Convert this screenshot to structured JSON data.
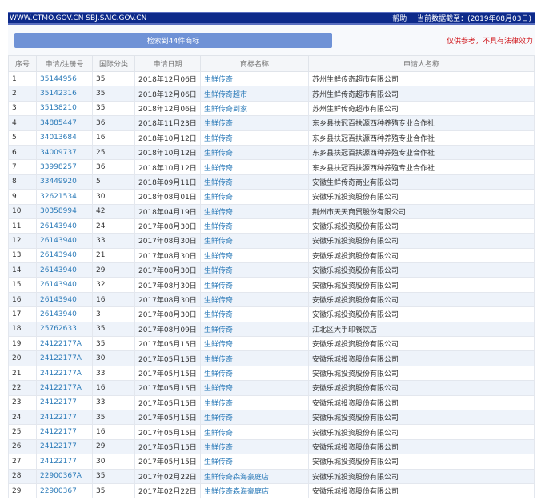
{
  "header": {
    "site": "WWW.CTMO.GOV.CN SBJ.SAIC.GOV.CN",
    "help": "帮助",
    "data_date": "当前数据截至：(2019年08月03日)"
  },
  "result_button": "检索到44件商标",
  "disclaimer": "仅供参考，不具有法律效力",
  "columns": [
    "序号",
    "申请/注册号",
    "国际分类",
    "申请日期",
    "商标名称",
    "申请人名称"
  ],
  "rows": [
    [
      "1",
      "35144956",
      "35",
      "2018年12月06日",
      "生鲜传奇",
      "苏州生鲜传奇超市有限公司"
    ],
    [
      "2",
      "35142316",
      "35",
      "2018年12月06日",
      "生鲜传奇超市",
      "苏州生鲜传奇超市有限公司"
    ],
    [
      "3",
      "35138210",
      "35",
      "2018年12月06日",
      "生鲜传奇到家",
      "苏州生鲜传奇超市有限公司"
    ],
    [
      "4",
      "34885447",
      "36",
      "2018年11月23日",
      "生鲜传奇",
      "东乡县扶冠百扶源西种养殖专业合作社"
    ],
    [
      "5",
      "34013684",
      "16",
      "2018年10月12日",
      "生鲜传奇",
      "东乡县扶冠百扶源西种养殖专业合作社"
    ],
    [
      "6",
      "34009737",
      "25",
      "2018年10月12日",
      "生鲜传奇",
      "东乡县扶冠百扶源西种养殖专业合作社"
    ],
    [
      "7",
      "33998257",
      "36",
      "2018年10月12日",
      "生鲜传奇",
      "东乡县扶冠百扶源西种养殖专业合作社"
    ],
    [
      "8",
      "33449920",
      "5",
      "2018年09月11日",
      "生鲜传奇",
      "安徽生鲜传奇商业有限公司"
    ],
    [
      "9",
      "32621534",
      "30",
      "2018年08月01日",
      "生鲜传奇",
      "安徽乐城投资股份有限公司"
    ],
    [
      "10",
      "30358994",
      "42",
      "2018年04月19日",
      "生鲜传奇",
      "荆州市天天商贸股份有限公司"
    ],
    [
      "11",
      "26143940",
      "24",
      "2017年08月30日",
      "生鲜传奇",
      "安徽乐城投资股份有限公司"
    ],
    [
      "12",
      "26143940",
      "33",
      "2017年08月30日",
      "生鲜传奇",
      "安徽乐城投资股份有限公司"
    ],
    [
      "13",
      "26143940",
      "21",
      "2017年08月30日",
      "生鲜传奇",
      "安徽乐城投资股份有限公司"
    ],
    [
      "14",
      "26143940",
      "29",
      "2017年08月30日",
      "生鲜传奇",
      "安徽乐城投资股份有限公司"
    ],
    [
      "15",
      "26143940",
      "32",
      "2017年08月30日",
      "生鲜传奇",
      "安徽乐城投资股份有限公司"
    ],
    [
      "16",
      "26143940",
      "16",
      "2017年08月30日",
      "生鲜传奇",
      "安徽乐城投资股份有限公司"
    ],
    [
      "17",
      "26143940",
      "3",
      "2017年08月30日",
      "生鲜传奇",
      "安徽乐城投资股份有限公司"
    ],
    [
      "18",
      "25762633",
      "35",
      "2017年08月09日",
      "生鲜传奇",
      "江北区大手印餐饮店"
    ],
    [
      "19",
      "24122177A",
      "35",
      "2017年05月15日",
      "生鲜传奇",
      "安徽乐城投资股份有限公司"
    ],
    [
      "20",
      "24122177A",
      "30",
      "2017年05月15日",
      "生鲜传奇",
      "安徽乐城投资股份有限公司"
    ],
    [
      "21",
      "24122177A",
      "33",
      "2017年05月15日",
      "生鲜传奇",
      "安徽乐城投资股份有限公司"
    ],
    [
      "22",
      "24122177A",
      "16",
      "2017年05月15日",
      "生鲜传奇",
      "安徽乐城投资股份有限公司"
    ],
    [
      "23",
      "24122177",
      "33",
      "2017年05月15日",
      "生鲜传奇",
      "安徽乐城投资股份有限公司"
    ],
    [
      "24",
      "24122177",
      "35",
      "2017年05月15日",
      "生鲜传奇",
      "安徽乐城投资股份有限公司"
    ],
    [
      "25",
      "24122177",
      "16",
      "2017年05月15日",
      "生鲜传奇",
      "安徽乐城投资股份有限公司"
    ],
    [
      "26",
      "24122177",
      "29",
      "2017年05月15日",
      "生鲜传奇",
      "安徽乐城投资股份有限公司"
    ],
    [
      "27",
      "24122177",
      "30",
      "2017年05月15日",
      "生鲜传奇",
      "安徽乐城投资股份有限公司"
    ],
    [
      "28",
      "22900367A",
      "35",
      "2017年02月22日",
      "生鲜传奇森海豪庭店",
      "安徽乐城投资股份有限公司"
    ],
    [
      "29",
      "22900367",
      "35",
      "2017年02月22日",
      "生鲜传奇森海豪庭店",
      "安徽乐城投资股份有限公司"
    ]
  ]
}
